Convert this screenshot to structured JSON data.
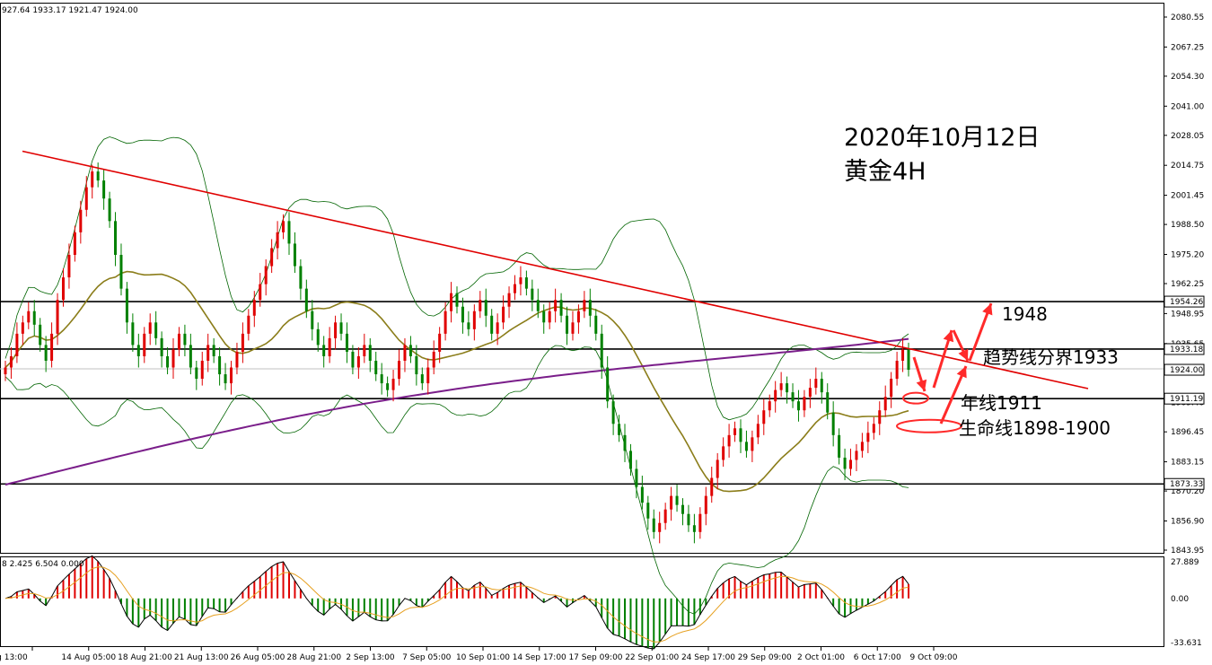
{
  "header": {
    "ohlc": "927.64 1933.17 1921.47 1924.00",
    "indicator": "8 2.425 6.504 0.000"
  },
  "annotations": {
    "title_date": "2020年10月12日",
    "title_symbol": "黄金4H",
    "label_1948": "1948",
    "label_trend": "趋势线分界1933",
    "label_year": "年线1911",
    "label_life": "生命线1898-1900"
  },
  "price_axis": {
    "ticks": [
      "2080.55",
      "2067.25",
      "2054.30",
      "2041.00",
      "2028.05",
      "2014.75",
      "2001.45",
      "1988.50",
      "1975.20",
      "1962.25",
      "1948.95",
      "1935.65",
      "1922.70",
      "1909.40",
      "1896.45",
      "1883.15",
      "1870.20",
      "1856.90",
      "1843.95"
    ],
    "boxes": [
      "1954.26",
      "1933.18",
      "1924.00",
      "1911.19",
      "1873.33"
    ]
  },
  "macd_axis": {
    "ticks": [
      "27.889",
      "0.00",
      "-33.631"
    ]
  },
  "time_axis": {
    "labels": [
      "13 Aug 13:00",
      "14 Aug 05:00",
      "18 Aug 21:00",
      "21 Aug 13:00",
      "26 Aug 05:00",
      "28 Aug 21:00",
      "2 Sep 13:00",
      "7 Sep 05:00",
      "10 Sep 01:00",
      "14 Sep 17:00",
      "17 Sep 09:00",
      "22 Sep 01:00",
      "24 Sep 17:00",
      "29 Sep 09:00",
      "2 Oct 01:00",
      "6 Oct 17:00",
      "9 Oct 09:00"
    ]
  },
  "chart_data": {
    "type": "candlestick",
    "symbol": "黄金4H",
    "ylim": [
      1843,
      2086
    ],
    "horizontal_levels": [
      1954.26,
      1933.18,
      1911.19,
      1873.33
    ],
    "current_price": 1924.0,
    "trendline": {
      "from": [
        0,
        2021
      ],
      "to": [
        181,
        1924
      ]
    },
    "closes": [
      1925,
      1930,
      1940,
      1945,
      1950,
      1944,
      1935,
      1928,
      1940,
      1955,
      1965,
      1975,
      1985,
      1995,
      2005,
      2012,
      2008,
      2000,
      1990,
      1975,
      1960,
      1945,
      1935,
      1930,
      1940,
      1945,
      1938,
      1930,
      1925,
      1933,
      1940,
      1935,
      1925,
      1920,
      1928,
      1935,
      1930,
      1922,
      1918,
      1925,
      1932,
      1940,
      1948,
      1955,
      1962,
      1970,
      1978,
      1985,
      1990,
      1980,
      1970,
      1960,
      1950,
      1942,
      1935,
      1930,
      1938,
      1945,
      1940,
      1932,
      1925,
      1930,
      1935,
      1928,
      1922,
      1918,
      1915,
      1920,
      1928,
      1935,
      1930,
      1922,
      1918,
      1925,
      1932,
      1940,
      1950,
      1958,
      1952,
      1945,
      1942,
      1950,
      1955,
      1948,
      1940,
      1945,
      1952,
      1958,
      1962,
      1965,
      1960,
      1955,
      1950,
      1945,
      1950,
      1955,
      1948,
      1940,
      1945,
      1950,
      1955,
      1948,
      1940,
      1925,
      1910,
      1900,
      1895,
      1888,
      1880,
      1872,
      1865,
      1858,
      1852,
      1856,
      1862,
      1868,
      1864,
      1860,
      1855,
      1852,
      1860,
      1868,
      1876,
      1884,
      1890,
      1895,
      1898,
      1892,
      1888,
      1894,
      1900,
      1906,
      1910,
      1915,
      1918,
      1914,
      1910,
      1906,
      1912,
      1916,
      1920,
      1914,
      1905,
      1895,
      1885,
      1880,
      1884,
      1888,
      1892,
      1896,
      1900,
      1906,
      1912,
      1920,
      1928,
      1933,
      1924
    ]
  }
}
